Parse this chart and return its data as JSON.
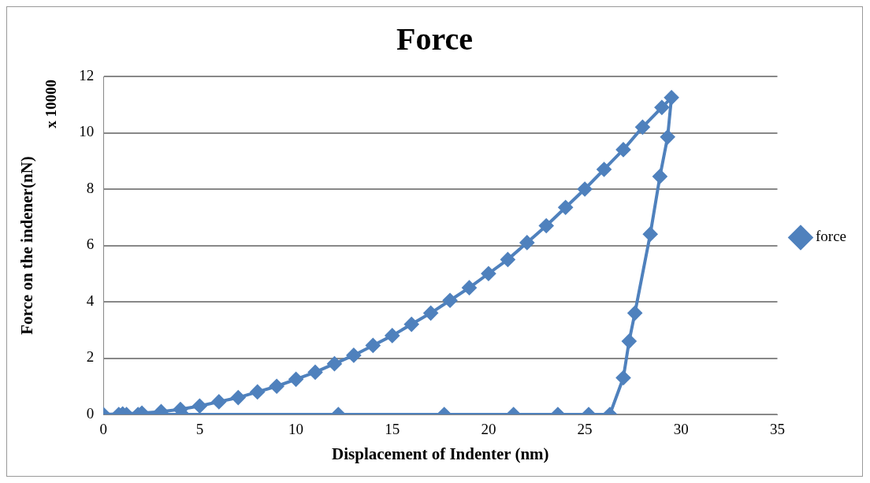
{
  "chart_data": {
    "type": "line",
    "title": "Force",
    "xlabel": "Displacement of Indenter (nm)",
    "ylabel": "Force on the indener(nN)",
    "annotations": [
      "x 10000"
    ],
    "xlim": [
      0,
      35
    ],
    "xticks": [
      0,
      5,
      10,
      15,
      20,
      25,
      30,
      35
    ],
    "ylim": [
      0,
      12
    ],
    "yticks": [
      0,
      2,
      4,
      6,
      8,
      10,
      12
    ],
    "grid": "y",
    "legend": "right",
    "marker": "diamond",
    "line_style": "solid",
    "series": [
      {
        "name": "force",
        "color": "#4f81bd",
        "x": [
          0,
          1,
          2,
          3,
          4,
          5,
          6,
          7,
          8,
          9,
          10,
          11,
          12,
          13,
          14,
          15,
          16,
          17,
          18,
          19,
          20,
          21,
          22,
          23,
          24,
          25,
          26,
          27,
          28,
          29,
          29.5,
          29.3,
          28.9,
          28.4,
          27.6,
          27.3,
          27.0,
          26.3,
          25.2,
          23.6,
          21.3,
          17.7,
          12.2,
          4.1,
          1.8,
          1.2,
          0.8
        ],
        "values": [
          0,
          0.02,
          0.05,
          0.1,
          0.18,
          0.3,
          0.45,
          0.6,
          0.8,
          1.0,
          1.25,
          1.5,
          1.8,
          2.1,
          2.45,
          2.8,
          3.2,
          3.6,
          4.05,
          4.5,
          5.0,
          5.5,
          6.1,
          6.7,
          7.35,
          8.0,
          8.7,
          9.4,
          10.2,
          10.9,
          11.25,
          9.85,
          8.45,
          6.4,
          3.6,
          2.6,
          1.3,
          0,
          0,
          0,
          0,
          0,
          0,
          0,
          0,
          0,
          0
        ]
      }
    ]
  }
}
